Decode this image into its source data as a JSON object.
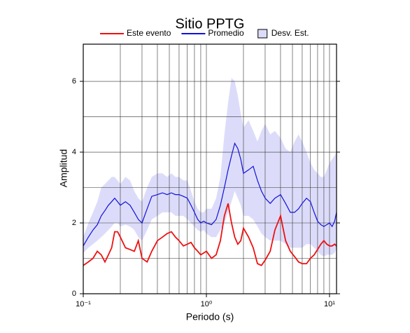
{
  "chart_data": {
    "type": "line",
    "title": "Sitio PPTG",
    "xlabel": "Periodo (s)",
    "ylabel": "Amplitud",
    "xscale": "log",
    "xlim": [
      0.1,
      11.4
    ],
    "ylim": [
      0,
      7.05
    ],
    "xticks": [
      {
        "value": 0.1,
        "label": "10⁻¹"
      },
      {
        "value": 1,
        "label": "10⁰"
      },
      {
        "value": 10,
        "label": "10¹"
      }
    ],
    "yticks": [
      0,
      2,
      4,
      6
    ],
    "x_grid": [
      0.1,
      0.2,
      0.3,
      0.4,
      0.5,
      0.6,
      0.7,
      0.8,
      0.9,
      1,
      2,
      3,
      4,
      5,
      6,
      7,
      8,
      9,
      10
    ],
    "y_grid": [
      1,
      2,
      3,
      4,
      5,
      6
    ],
    "grid": true,
    "legend": "top",
    "x": [
      0.1,
      0.11,
      0.12,
      0.13,
      0.14,
      0.15,
      0.16,
      0.17,
      0.18,
      0.19,
      0.2,
      0.22,
      0.24,
      0.26,
      0.28,
      0.3,
      0.33,
      0.36,
      0.4,
      0.44,
      0.48,
      0.52,
      0.56,
      0.6,
      0.65,
      0.7,
      0.75,
      0.8,
      0.85,
      0.9,
      0.95,
      1.0,
      1.1,
      1.2,
      1.3,
      1.4,
      1.5,
      1.6,
      1.7,
      1.8,
      1.9,
      2.0,
      2.2,
      2.4,
      2.6,
      2.8,
      3.0,
      3.3,
      3.6,
      4.0,
      4.4,
      4.8,
      5.2,
      5.6,
      6.0,
      6.5,
      7.0,
      7.5,
      8.0,
      8.5,
      9.0,
      9.5,
      10,
      10.5,
      11,
      11.4
    ],
    "series": [
      {
        "name": "Este evento",
        "color": "#ee1111",
        "values": [
          0.8,
          0.9,
          1.0,
          1.2,
          1.1,
          0.9,
          1.1,
          1.3,
          1.75,
          1.75,
          1.6,
          1.3,
          1.25,
          1.2,
          1.5,
          1.0,
          0.9,
          1.2,
          1.5,
          1.6,
          1.7,
          1.75,
          1.6,
          1.5,
          1.35,
          1.4,
          1.45,
          1.3,
          1.2,
          1.1,
          1.15,
          1.2,
          1.0,
          1.1,
          1.5,
          2.2,
          2.55,
          2.0,
          1.6,
          1.4,
          1.5,
          1.85,
          1.6,
          1.3,
          0.85,
          0.8,
          0.95,
          1.2,
          1.8,
          2.2,
          1.5,
          1.2,
          1.05,
          0.9,
          0.85,
          0.85,
          1.0,
          1.1,
          1.25,
          1.4,
          1.5,
          1.4,
          1.35,
          1.35,
          1.4,
          1.35
        ]
      },
      {
        "name": "Promedio",
        "color": "#1111dd",
        "values": [
          1.35,
          1.6,
          1.8,
          1.95,
          2.2,
          2.35,
          2.5,
          2.6,
          2.7,
          2.6,
          2.5,
          2.6,
          2.5,
          2.3,
          2.1,
          2.0,
          2.4,
          2.75,
          2.8,
          2.85,
          2.8,
          2.85,
          2.8,
          2.8,
          2.75,
          2.7,
          2.5,
          2.3,
          2.1,
          2.0,
          2.05,
          2.0,
          1.95,
          2.1,
          2.5,
          3.0,
          3.5,
          3.9,
          4.25,
          4.1,
          3.8,
          3.4,
          3.5,
          3.6,
          3.2,
          2.9,
          2.7,
          2.55,
          2.7,
          2.8,
          2.55,
          2.3,
          2.3,
          2.4,
          2.55,
          2.7,
          2.6,
          2.3,
          2.05,
          1.95,
          1.9,
          1.95,
          2.0,
          1.9,
          2.05,
          2.3
        ]
      }
    ],
    "band": {
      "name": "Desv. Est.",
      "color": "#dcdcfa",
      "upper": [
        1.6,
        2.0,
        2.3,
        2.6,
        3.0,
        3.1,
        3.2,
        3.3,
        3.3,
        3.2,
        3.1,
        3.3,
        3.2,
        2.9,
        2.7,
        2.6,
        3.0,
        3.3,
        3.4,
        3.4,
        3.3,
        3.4,
        3.3,
        3.3,
        3.2,
        3.2,
        2.9,
        2.6,
        2.4,
        2.3,
        2.3,
        2.4,
        2.4,
        2.7,
        3.3,
        4.5,
        5.4,
        6.1,
        6.0,
        5.6,
        5.1,
        4.7,
        4.9,
        4.6,
        4.3,
        4.6,
        4.8,
        4.5,
        4.6,
        4.4,
        4.1,
        4.0,
        4.3,
        4.5,
        4.3,
        4.0,
        3.7,
        3.5,
        3.4,
        3.3,
        3.3,
        3.5,
        3.7,
        3.8,
        3.9,
        4.0
      ],
      "lower": [
        1.15,
        1.3,
        1.4,
        1.5,
        1.6,
        1.7,
        1.8,
        1.9,
        2.0,
        2.0,
        1.9,
        1.95,
        1.9,
        1.8,
        1.6,
        1.5,
        1.8,
        2.1,
        2.2,
        2.3,
        2.3,
        2.3,
        2.2,
        2.2,
        2.2,
        2.1,
        2.0,
        1.9,
        1.8,
        1.75,
        1.8,
        1.7,
        1.6,
        1.6,
        1.8,
        2.0,
        2.3,
        2.6,
        2.9,
        2.7,
        2.5,
        2.2,
        2.2,
        2.1,
        1.9,
        1.7,
        1.6,
        1.5,
        1.5,
        1.5,
        1.4,
        1.3,
        1.3,
        1.3,
        1.3,
        1.4,
        1.4,
        1.3,
        1.2,
        1.1,
        1.05,
        1.1,
        1.1,
        1.1,
        1.15,
        1.3
      ]
    }
  }
}
